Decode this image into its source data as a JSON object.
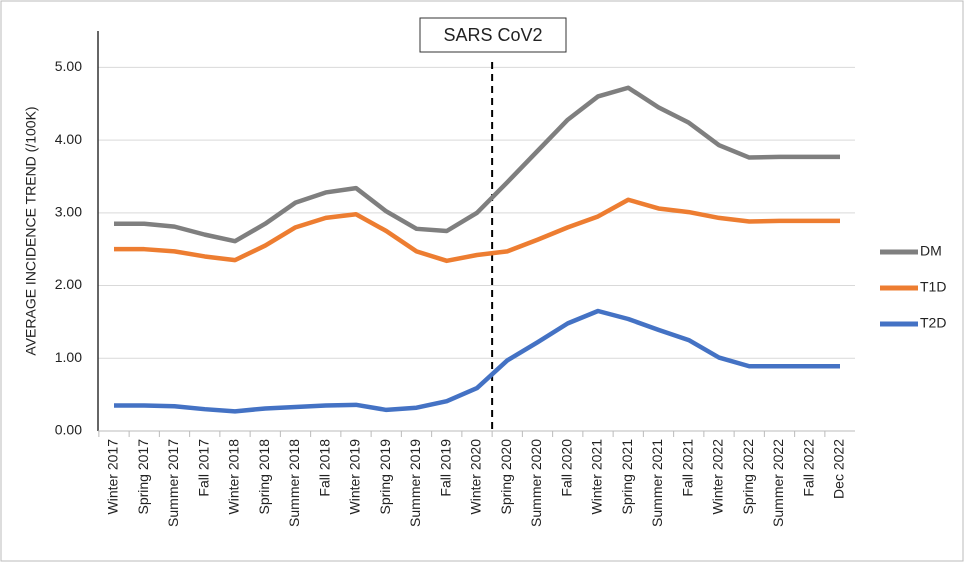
{
  "chart_data": {
    "type": "line",
    "annotation": "SARS CoV2",
    "y_label": "AVERAGE INCIDENCE TREND (/100K)",
    "categories": [
      "Winter 2017",
      "Spring 2017",
      "Summer 2017",
      "Fall 2017",
      "Winter 2018",
      "Spring 2018",
      "Summer 2018",
      "Fall 2018",
      "Winter 2019",
      "Spring 2019",
      "Summer 2019",
      "Fall 2019",
      "Winter 2020",
      "Spring 2020",
      "Summer 2020",
      "Fall 2020",
      "Winter 2021",
      "Spring 2021",
      "Summer 2021",
      "Fall 2021",
      "Winter 2022",
      "Spring 2022",
      "Summer 2022",
      "Fall 2022",
      "Dec 2022"
    ],
    "series": [
      {
        "name": "DM",
        "color": "#7f7f7f",
        "values": [
          2.85,
          2.85,
          2.81,
          2.7,
          2.61,
          2.85,
          3.14,
          3.28,
          3.34,
          3.02,
          2.78,
          2.75,
          3.0,
          3.42,
          3.85,
          4.28,
          4.6,
          4.72,
          4.45,
          4.24,
          3.93,
          3.76,
          3.77,
          3.77,
          3.77
        ]
      },
      {
        "name": "T1D",
        "color": "#ed7d31",
        "values": [
          2.5,
          2.5,
          2.47,
          2.4,
          2.35,
          2.55,
          2.8,
          2.93,
          2.98,
          2.75,
          2.47,
          2.34,
          2.42,
          2.47,
          2.63,
          2.8,
          2.95,
          3.18,
          3.06,
          3.01,
          2.93,
          2.88,
          2.89,
          2.89,
          2.89
        ]
      },
      {
        "name": "T2D",
        "color": "#4472c4",
        "values": [
          0.35,
          0.35,
          0.34,
          0.3,
          0.27,
          0.31,
          0.33,
          0.35,
          0.36,
          0.29,
          0.32,
          0.41,
          0.59,
          0.97,
          1.22,
          1.48,
          1.65,
          1.54,
          1.39,
          1.25,
          1.01,
          0.89,
          0.89,
          0.89,
          0.89
        ]
      }
    ],
    "ylim": [
      0,
      5.5
    ],
    "yticks": [
      {
        "value": 0,
        "label": "0.00"
      },
      {
        "value": 1,
        "label": "1.00"
      },
      {
        "value": 2,
        "label": "2.00"
      },
      {
        "value": 3,
        "label": "3.00"
      },
      {
        "value": 4,
        "label": "4.00"
      },
      {
        "value": 5,
        "label": "5.00"
      }
    ],
    "grid": true,
    "legend": "right"
  }
}
